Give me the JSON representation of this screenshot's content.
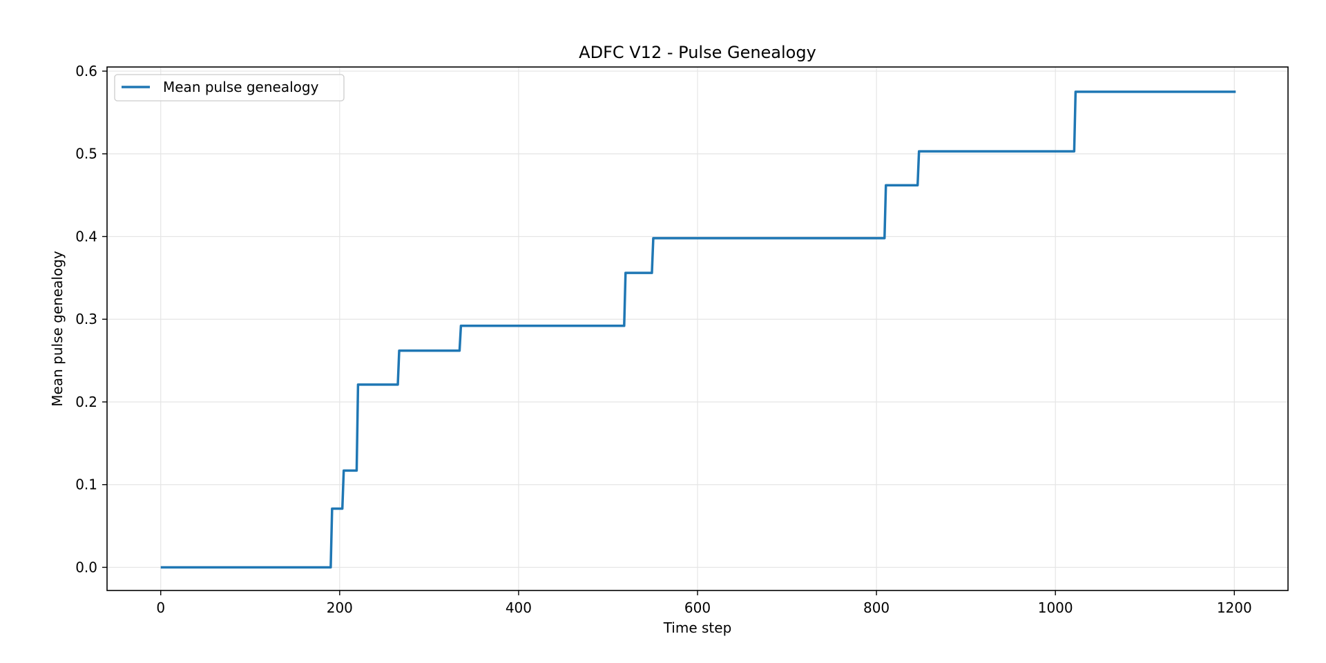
{
  "chart_data": {
    "type": "line",
    "title": "ADFC V12 - Pulse Genealogy",
    "xlabel": "Time step",
    "ylabel": "Mean pulse genealogy",
    "xlim": [
      -60,
      1260
    ],
    "ylim": [
      -0.028,
      0.605
    ],
    "xticks": [
      0,
      200,
      400,
      600,
      800,
      1000,
      1200
    ],
    "yticks": [
      0.0,
      0.1,
      0.2,
      0.3,
      0.4,
      0.5,
      0.6
    ],
    "xtick_labels": [
      "0",
      "200",
      "400",
      "600",
      "800",
      "1000",
      "1200"
    ],
    "ytick_labels": [
      "0.0",
      "0.1",
      "0.2",
      "0.3",
      "0.4",
      "0.5",
      "0.6"
    ],
    "grid": true,
    "legend_position": "top-left",
    "series": [
      {
        "name": "Mean pulse genealogy",
        "color": "#1f77b4",
        "step": true,
        "x": [
          0,
          190,
          203,
          219,
          265,
          334,
          518,
          549,
          809,
          846,
          1021,
          1200
        ],
        "y": [
          0.0,
          0.071,
          0.117,
          0.221,
          0.262,
          0.292,
          0.356,
          0.398,
          0.462,
          0.503,
          0.575,
          0.575
        ]
      }
    ]
  }
}
